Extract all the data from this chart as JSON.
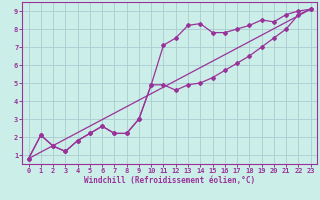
{
  "xlabel": "Windchill (Refroidissement éolien,°C)",
  "ylabel": "",
  "xlim": [
    -0.5,
    23.5
  ],
  "ylim": [
    0.5,
    9.5
  ],
  "xticks": [
    0,
    1,
    2,
    3,
    4,
    5,
    6,
    7,
    8,
    9,
    10,
    11,
    12,
    13,
    14,
    15,
    16,
    17,
    18,
    19,
    20,
    21,
    22,
    23
  ],
  "yticks": [
    1,
    2,
    3,
    4,
    5,
    6,
    7,
    8,
    9
  ],
  "bg_color": "#cceee8",
  "grid_color": "#aaccd0",
  "line_color": "#993399",
  "curve1_y": [
    0.8,
    2.1,
    1.5,
    1.2,
    1.8,
    2.2,
    2.6,
    2.2,
    2.2,
    3.0,
    4.9,
    7.1,
    7.5,
    8.2,
    8.3,
    7.8,
    7.8,
    8.0,
    8.2,
    8.5,
    8.4,
    8.8,
    9.0,
    9.1
  ],
  "curve2_y": [
    0.8,
    2.1,
    1.5,
    1.2,
    1.8,
    2.2,
    2.6,
    2.2,
    2.2,
    3.0,
    4.9,
    4.9,
    4.6,
    4.9,
    5.0,
    5.3,
    5.7,
    6.1,
    6.5,
    7.0,
    7.5,
    8.0,
    8.8,
    9.1
  ],
  "line_x": [
    0,
    23
  ],
  "line_y": [
    0.8,
    9.1
  ],
  "tick_fontsize": 5,
  "label_fontsize": 5.5
}
